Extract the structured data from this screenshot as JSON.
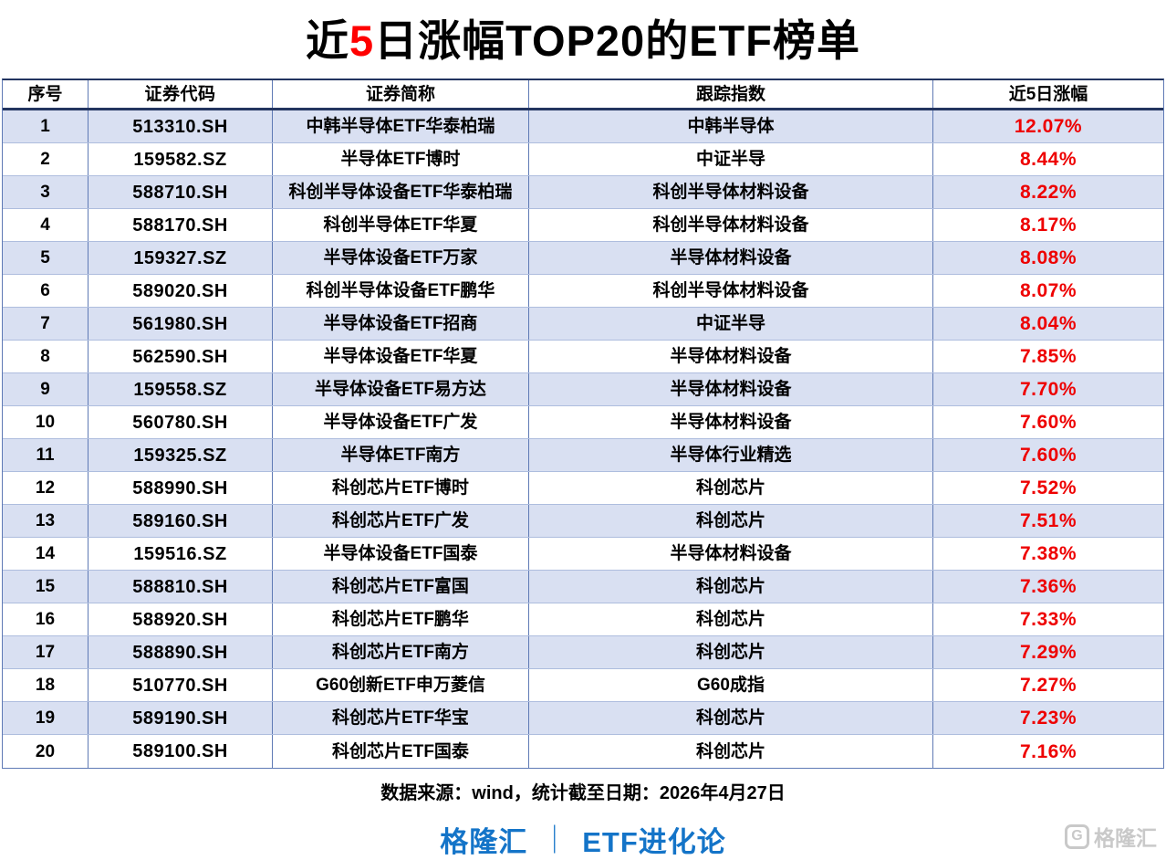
{
  "title": {
    "prefix": "近",
    "highlight": "5",
    "suffix": "日涨幅TOP20的ETF榜单",
    "highlight_color": "#ff0000"
  },
  "chart_data": {
    "type": "table",
    "title": "近5日涨幅TOP20的ETF榜单",
    "columns": [
      "序号",
      "证券代码",
      "证券简称",
      "跟踪指数",
      "近5日涨幅"
    ],
    "rows": [
      [
        "1",
        "513310.SH",
        "中韩半导体ETF华泰柏瑞",
        "中韩半导体",
        "12.07%"
      ],
      [
        "2",
        "159582.SZ",
        "半导体ETF博时",
        "中证半导",
        "8.44%"
      ],
      [
        "3",
        "588710.SH",
        "科创半导体设备ETF华泰柏瑞",
        "科创半导体材料设备",
        "8.22%"
      ],
      [
        "4",
        "588170.SH",
        "科创半导体ETF华夏",
        "科创半导体材料设备",
        "8.17%"
      ],
      [
        "5",
        "159327.SZ",
        "半导体设备ETF万家",
        "半导体材料设备",
        "8.08%"
      ],
      [
        "6",
        "589020.SH",
        "科创半导体设备ETF鹏华",
        "科创半导体材料设备",
        "8.07%"
      ],
      [
        "7",
        "561980.SH",
        "半导体设备ETF招商",
        "中证半导",
        "8.04%"
      ],
      [
        "8",
        "562590.SH",
        "半导体设备ETF华夏",
        "半导体材料设备",
        "7.85%"
      ],
      [
        "9",
        "159558.SZ",
        "半导体设备ETF易方达",
        "半导体材料设备",
        "7.70%"
      ],
      [
        "10",
        "560780.SH",
        "半导体设备ETF广发",
        "半导体材料设备",
        "7.60%"
      ],
      [
        "11",
        "159325.SZ",
        "半导体ETF南方",
        "半导体行业精选",
        "7.60%"
      ],
      [
        "12",
        "588990.SH",
        "科创芯片ETF博时",
        "科创芯片",
        "7.52%"
      ],
      [
        "13",
        "589160.SH",
        "科创芯片ETF广发",
        "科创芯片",
        "7.51%"
      ],
      [
        "14",
        "159516.SZ",
        "半导体设备ETF国泰",
        "半导体材料设备",
        "7.38%"
      ],
      [
        "15",
        "588810.SH",
        "科创芯片ETF富国",
        "科创芯片",
        "7.36%"
      ],
      [
        "16",
        "588920.SH",
        "科创芯片ETF鹏华",
        "科创芯片",
        "7.33%"
      ],
      [
        "17",
        "588890.SH",
        "科创芯片ETF南方",
        "科创芯片",
        "7.29%"
      ],
      [
        "18",
        "510770.SH",
        "G60创新ETF申万菱信",
        "G60成指",
        "7.27%"
      ],
      [
        "19",
        "589190.SH",
        "科创芯片ETF华宝",
        "科创芯片",
        "7.23%"
      ],
      [
        "20",
        "589100.SH",
        "科创芯片ETF国泰",
        "科创芯片",
        "7.16%"
      ]
    ],
    "banded_rows": "odd rows light blue",
    "value_column_color": "#ee0000"
  },
  "footer": {
    "source": "数据来源：wind，统计截至日期：2026年4月27日",
    "brand_left": "格隆汇",
    "brand_divider": "｜",
    "brand_right": "ETF进化论"
  },
  "watermark": {
    "icon_letter": "G",
    "text": "格隆汇"
  },
  "colors": {
    "title_highlight_red": "#ff0000",
    "percent_red": "#ee0000",
    "brand_blue": "#1474c8",
    "band_blue": "#d9e0f2",
    "border_dark_navy": "#233560",
    "border_vertical_blue": "#5f7ab5",
    "row_divider_blue": "#aebdde",
    "watermark_gray": "#c9c9c9"
  }
}
